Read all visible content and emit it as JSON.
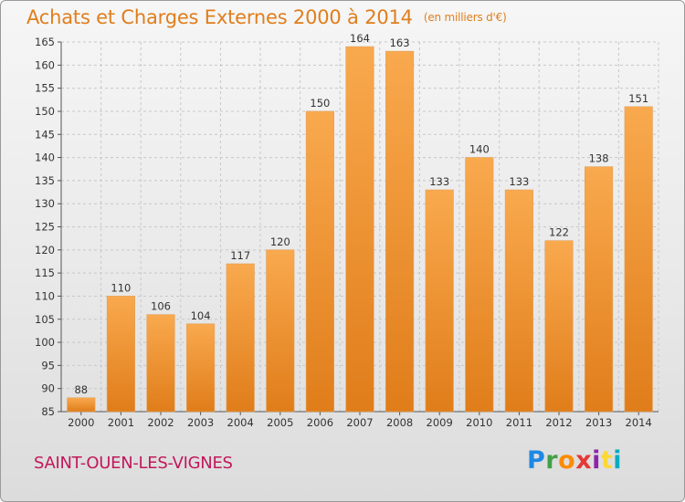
{
  "header": {
    "title": "Achats et Charges Externes 2000 à 2014",
    "unit": "(en milliers d'€)"
  },
  "footer": {
    "place": "SAINT-OUEN-LES-VIGNES",
    "logo_letters": [
      "P",
      "r",
      "o",
      "x",
      "i",
      "t",
      "i"
    ]
  },
  "colors": {
    "bar_top": "#f9a94e",
    "bar_bottom": "#e07d1a",
    "title": "#e07e1c",
    "place": "#c2185b"
  },
  "chart_data": {
    "type": "bar",
    "title": "Achats et Charges Externes 2000 à 2014",
    "subtitle": "(en milliers d'€)",
    "xlabel": "",
    "ylabel": "",
    "categories": [
      "2000",
      "2001",
      "2002",
      "2003",
      "2004",
      "2005",
      "2006",
      "2007",
      "2008",
      "2009",
      "2010",
      "2011",
      "2012",
      "2013",
      "2014"
    ],
    "values": [
      88,
      110,
      106,
      104,
      117,
      120,
      150,
      164,
      163,
      133,
      140,
      133,
      122,
      138,
      151
    ],
    "ylim": [
      85,
      165
    ],
    "yticks": [
      85,
      90,
      95,
      100,
      105,
      110,
      115,
      120,
      125,
      130,
      135,
      140,
      145,
      150,
      155,
      160,
      165
    ],
    "grid": true,
    "data_labels": true,
    "legend": "none"
  }
}
